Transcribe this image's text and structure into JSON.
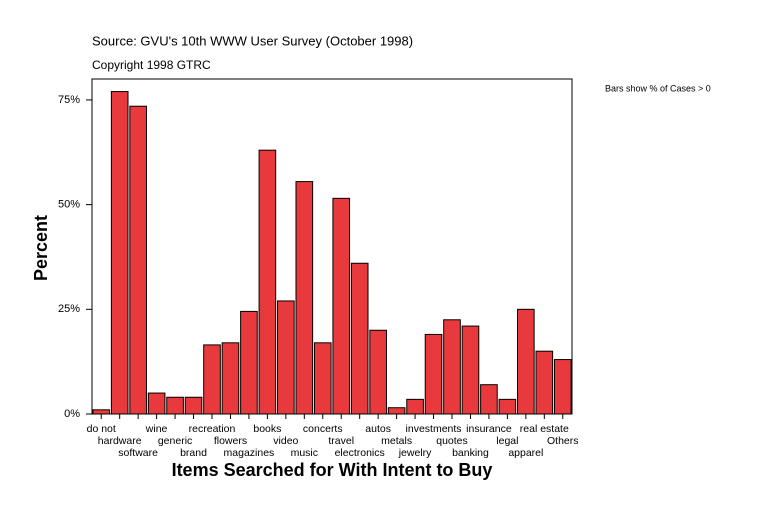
{
  "chart_data": {
    "type": "bar",
    "title": "Source: GVU's 10th WWW User Survey (October 1998)",
    "subtitle": "Copyright 1998 GTRC",
    "note": "Bars show % of Cases > 0",
    "x_label": "Items Searched for With Intent to Buy",
    "y_label": "Percent",
    "categories": [
      "do not",
      "hardware",
      "software",
      "wine",
      "generic",
      "brand",
      "recreation",
      "flowers",
      "magazines",
      "books",
      "video",
      "music",
      "concerts",
      "travel",
      "electronics",
      "autos",
      "metals",
      "jewelry",
      "investments",
      "quotes",
      "banking",
      "insurance",
      "legal",
      "apparel",
      "real estate",
      "Others"
    ],
    "values": [
      1,
      77,
      73.5,
      5,
      4,
      4,
      16.5,
      17,
      24.5,
      63,
      27,
      55.5,
      17,
      51.5,
      36,
      20,
      1.5,
      3.5,
      19,
      22.5,
      21,
      7,
      3.5,
      25,
      15,
      13
    ],
    "color": "#e83a3c",
    "ylim": [
      0,
      80
    ],
    "yticks": [
      {
        "value": 0,
        "label": "0%"
      },
      {
        "value": 25,
        "label": "25%"
      },
      {
        "value": 50,
        "label": "50%"
      },
      {
        "value": 75,
        "label": "75%"
      }
    ]
  }
}
